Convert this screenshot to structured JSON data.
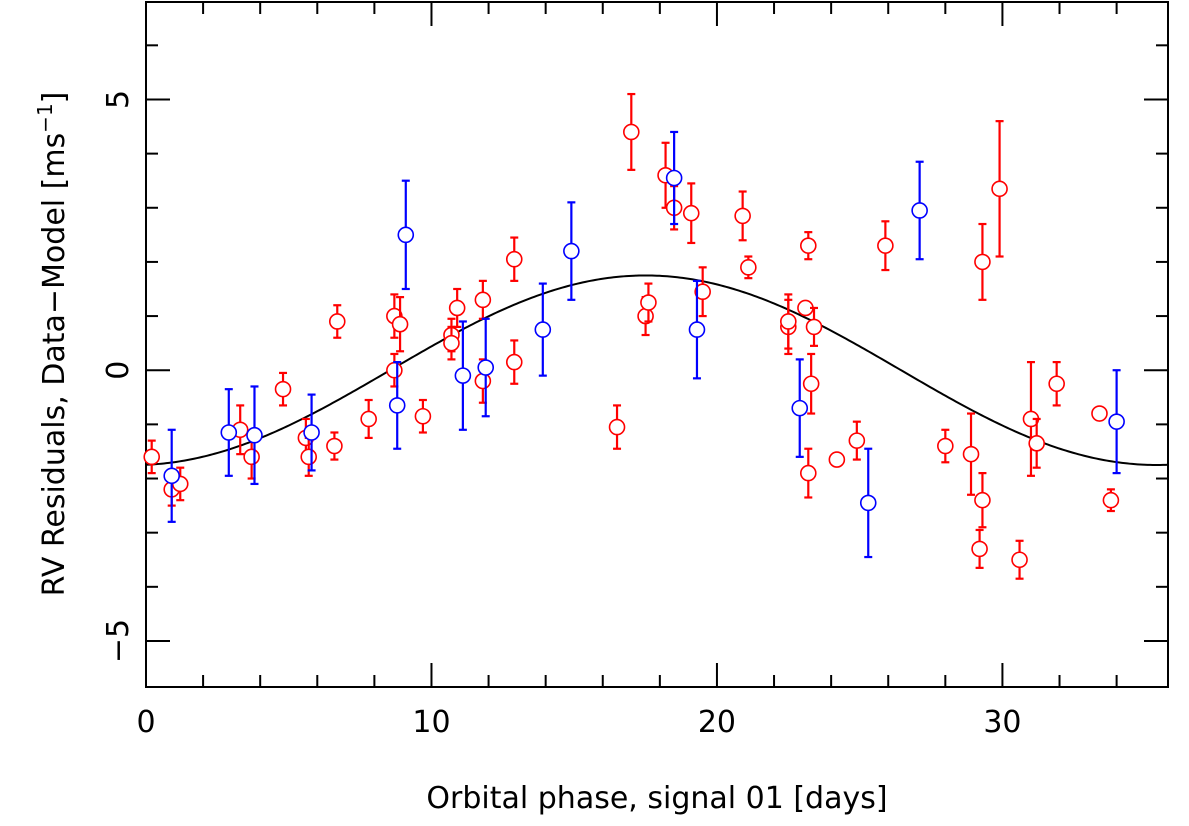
{
  "chart_data": {
    "type": "scatter",
    "title": "",
    "xlabel": "Orbital phase, signal 01 [days]",
    "ylabel_main": "RV Residuals, Data−Model [ms",
    "ylabel_sup": "−1",
    "ylabel_close": "]",
    "xlim": [
      0,
      35.8
    ],
    "ylim": [
      -5.85,
      6.8
    ],
    "x_ticks": [
      0,
      10,
      20,
      30
    ],
    "x_tick_labels": [
      "0",
      "10",
      "20",
      "30"
    ],
    "y_ticks": [
      -5,
      0,
      5
    ],
    "y_tick_labels": [
      "−5",
      "0",
      "5"
    ],
    "x_minor_step": 2,
    "y_minor_step": 1,
    "grid": false,
    "colors": {
      "series_a": "#ff0000",
      "series_b": "#0000ff",
      "model": "#000000",
      "axes": "#000000"
    },
    "model_curve": {
      "type": "sinusoid",
      "amplitude": 1.75,
      "mean": 0.0,
      "period": 35.8,
      "phase_of_max": 17.5
    },
    "series": [
      {
        "name": "red",
        "color": "#ff0000",
        "points": [
          [
            0.2,
            -1.6,
            0.3
          ],
          [
            0.9,
            -2.2,
            0.3
          ],
          [
            1.2,
            -2.1,
            0.3
          ],
          [
            3.3,
            -1.1,
            0.45
          ],
          [
            3.7,
            -1.6,
            0.4
          ],
          [
            4.8,
            -0.35,
            0.3
          ],
          [
            5.6,
            -1.25,
            0.35
          ],
          [
            5.7,
            -1.6,
            0.35
          ],
          [
            6.6,
            -1.4,
            0.25
          ],
          [
            6.7,
            0.9,
            0.3
          ],
          [
            7.8,
            -0.9,
            0.35
          ],
          [
            8.7,
            1.0,
            0.4
          ],
          [
            8.7,
            0.0,
            0.3
          ],
          [
            8.9,
            0.85,
            0.5
          ],
          [
            9.7,
            -0.85,
            0.3
          ],
          [
            10.7,
            0.65,
            0.3
          ],
          [
            10.7,
            0.5,
            0.3
          ],
          [
            10.9,
            1.15,
            0.35
          ],
          [
            11.8,
            1.3,
            0.35
          ],
          [
            11.8,
            -0.2,
            0.4
          ],
          [
            12.9,
            2.05,
            0.4
          ],
          [
            12.9,
            0.15,
            0.4
          ],
          [
            16.5,
            -1.05,
            0.4
          ],
          [
            17.0,
            4.4,
            0.7
          ],
          [
            17.5,
            1.0,
            0.35
          ],
          [
            17.6,
            1.25,
            0.35
          ],
          [
            18.2,
            3.6,
            0.6
          ],
          [
            18.5,
            3.0,
            0.4
          ],
          [
            19.1,
            2.9,
            0.55
          ],
          [
            19.5,
            1.45,
            0.45
          ],
          [
            20.9,
            2.85,
            0.45
          ],
          [
            21.1,
            1.9,
            0.2
          ],
          [
            22.5,
            0.8,
            0.5
          ],
          [
            22.5,
            0.9,
            0.5
          ],
          [
            23.1,
            1.15,
            0.1
          ],
          [
            23.2,
            2.3,
            0.25
          ],
          [
            23.2,
            -1.9,
            0.45
          ],
          [
            23.3,
            -0.25,
            0.55
          ],
          [
            23.4,
            0.8,
            0.35
          ],
          [
            24.2,
            -1.65,
            0.1
          ],
          [
            24.9,
            -1.3,
            0.35
          ],
          [
            25.9,
            2.3,
            0.45
          ],
          [
            28.0,
            -1.4,
            0.3
          ],
          [
            28.9,
            -1.55,
            0.75
          ],
          [
            29.2,
            -3.3,
            0.35
          ],
          [
            29.3,
            -2.4,
            0.5
          ],
          [
            29.3,
            2.0,
            0.7
          ],
          [
            29.9,
            3.35,
            1.25
          ],
          [
            30.6,
            -3.5,
            0.35
          ],
          [
            31.0,
            -0.9,
            1.05
          ],
          [
            31.2,
            -1.35,
            0.45
          ],
          [
            31.9,
            -0.25,
            0.4
          ],
          [
            33.4,
            -0.8,
            0.1
          ],
          [
            33.8,
            -2.4,
            0.2
          ]
        ]
      },
      {
        "name": "blue",
        "color": "#0000ff",
        "points": [
          [
            0.9,
            -1.95,
            0.85
          ],
          [
            2.9,
            -1.15,
            0.8
          ],
          [
            3.8,
            -1.2,
            0.9
          ],
          [
            5.8,
            -1.15,
            0.7
          ],
          [
            8.8,
            -0.65,
            0.8
          ],
          [
            9.1,
            2.5,
            1.0
          ],
          [
            11.1,
            -0.1,
            1.0
          ],
          [
            11.9,
            0.05,
            0.9
          ],
          [
            13.9,
            0.75,
            0.85
          ],
          [
            14.9,
            2.2,
            0.9
          ],
          [
            18.5,
            3.55,
            0.85
          ],
          [
            19.3,
            0.75,
            0.9
          ],
          [
            22.9,
            -0.7,
            0.9
          ],
          [
            25.3,
            -2.45,
            1.0
          ],
          [
            27.1,
            2.95,
            0.9
          ],
          [
            34.0,
            -0.95,
            0.95
          ]
        ]
      }
    ]
  }
}
